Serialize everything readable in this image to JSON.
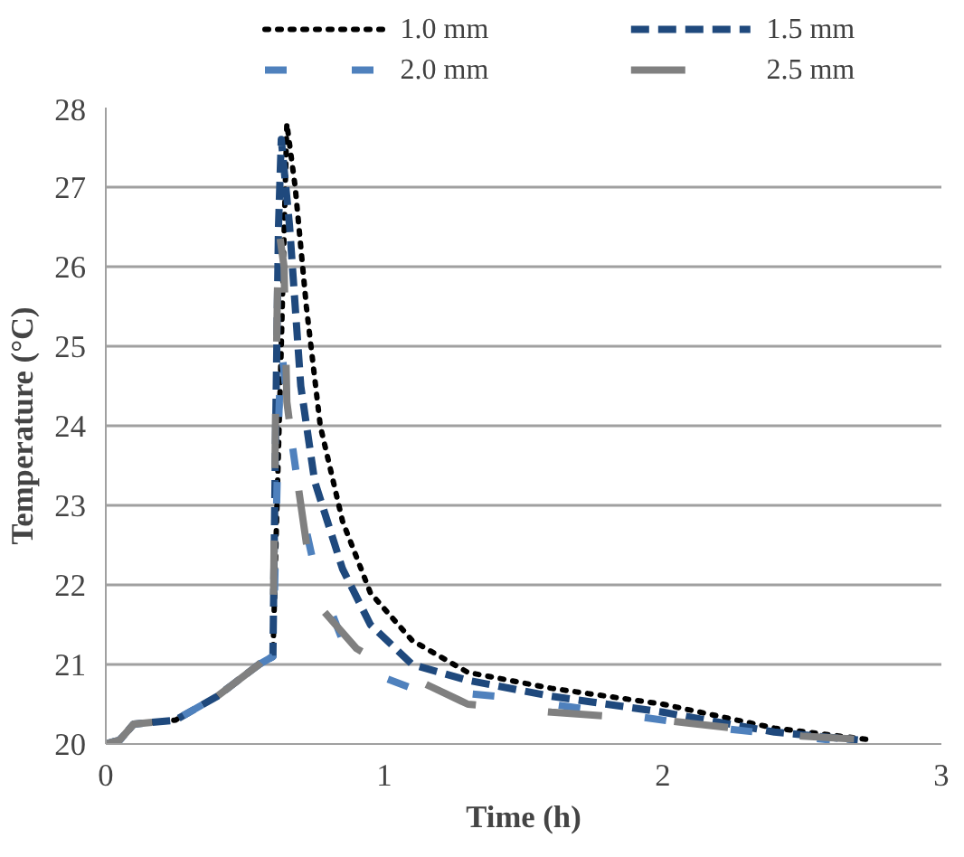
{
  "chart_data": {
    "type": "line",
    "xlabel": "Time (h)",
    "ylabel": "Temperature (°C)",
    "xlim": [
      0,
      3
    ],
    "xticks": [
      0,
      1,
      2,
      3
    ],
    "ylim": [
      20,
      28
    ],
    "yticks": [
      20,
      21,
      22,
      23,
      24,
      25,
      26,
      27,
      28
    ],
    "grid": "y",
    "legend": "top",
    "marker": "none",
    "series": [
      {
        "name": "1.0 mm",
        "color": "#000000",
        "line_style": "dotted",
        "x": [
          0,
          0.05,
          0.1,
          0.25,
          0.4,
          0.55,
          0.6,
          0.63,
          0.65,
          0.68,
          0.72,
          0.77,
          0.85,
          0.95,
          1.1,
          1.3,
          1.6,
          2.0,
          2.4,
          2.75
        ],
        "values": [
          20,
          20.05,
          20.25,
          20.3,
          20.6,
          21.0,
          21.1,
          25.0,
          27.8,
          27.0,
          25.5,
          24.0,
          22.8,
          21.9,
          21.3,
          20.9,
          20.7,
          20.5,
          20.2,
          20.05
        ]
      },
      {
        "name": "1.5 mm",
        "color": "#1f497d",
        "line_style": "dashed",
        "x": [
          0,
          0.05,
          0.1,
          0.25,
          0.4,
          0.55,
          0.6,
          0.61,
          0.62,
          0.63,
          0.66,
          0.7,
          0.75,
          0.85,
          0.95,
          1.1,
          1.3,
          1.6,
          2.0,
          2.4,
          2.7
        ],
        "values": [
          20,
          20.05,
          20.25,
          20.3,
          20.6,
          21.0,
          21.1,
          24.0,
          26.5,
          27.6,
          26.5,
          24.5,
          23.3,
          22.2,
          21.5,
          21.0,
          20.8,
          20.6,
          20.4,
          20.15,
          20.05
        ]
      },
      {
        "name": "2.0 mm",
        "color": "#4f81bd",
        "line_style": "dashed",
        "x": [
          0,
          0.05,
          0.1,
          0.25,
          0.4,
          0.55,
          0.6,
          0.62,
          0.63,
          0.66,
          0.7,
          0.75,
          0.85,
          0.95,
          1.1,
          1.4,
          1.8,
          2.2,
          2.6
        ],
        "values": [
          20,
          20.05,
          20.25,
          20.3,
          20.6,
          21.0,
          21.1,
          24.0,
          25.0,
          24.0,
          23.0,
          22.2,
          21.3,
          20.9,
          20.7,
          20.6,
          20.4,
          20.2,
          20.05
        ]
      },
      {
        "name": "2.5 mm",
        "color": "#808080",
        "line_style": "dashed",
        "x": [
          0,
          0.05,
          0.1,
          0.25,
          0.4,
          0.55,
          0.6,
          0.61,
          0.62,
          0.64,
          0.65,
          0.68,
          0.75,
          0.9,
          1.0,
          1.3,
          1.6,
          2.0,
          2.5,
          2.75
        ],
        "values": [
          20,
          20.05,
          20.25,
          20.3,
          20.6,
          21.0,
          21.2,
          24.3,
          26.5,
          26.0,
          24.3,
          23.5,
          21.8,
          21.2,
          21.0,
          20.5,
          20.4,
          20.3,
          20.1,
          20.05
        ]
      }
    ]
  }
}
